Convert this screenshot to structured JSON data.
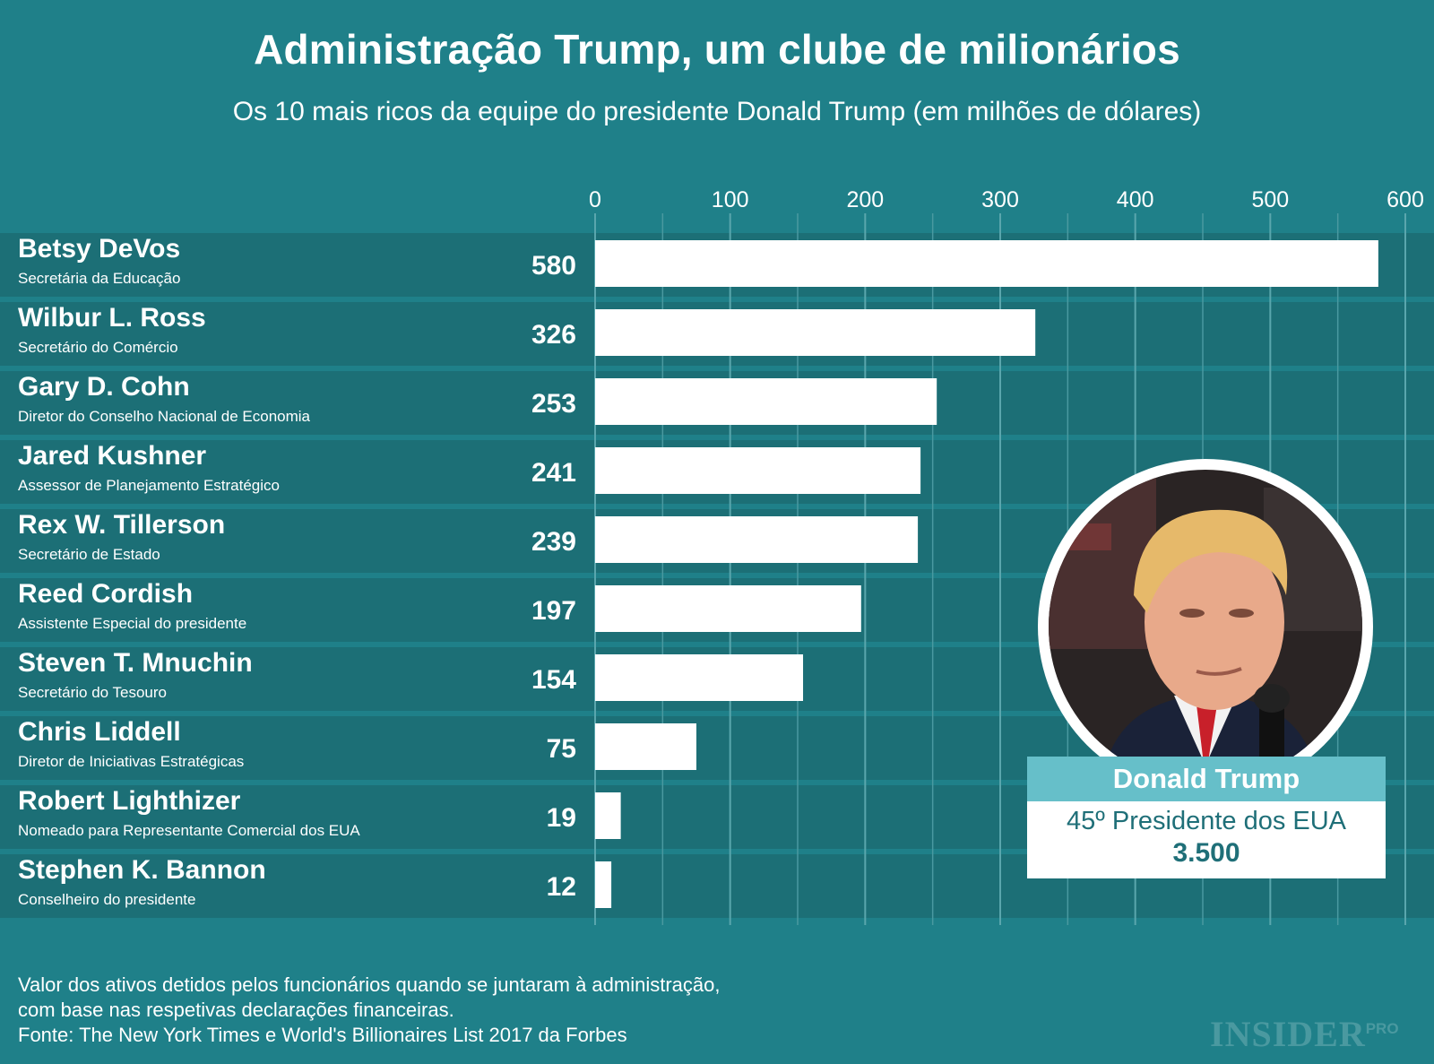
{
  "title": "Administração Trump, um clube de milionários",
  "subtitle": "Os 10 mais ricos da equipe do presidente Donald Trump (em milhões de dólares)",
  "chart_data": {
    "type": "bar",
    "orientation": "horizontal",
    "title": "Administração Trump, um clube de milionários",
    "subtitle": "Os 10 mais ricos da equipe do presidente Donald Trump (em milhões de dólares)",
    "xlim": [
      0,
      600
    ],
    "xticks": [
      0,
      100,
      200,
      300,
      400,
      500,
      600
    ],
    "grid": true,
    "categories": [
      "Betsy DeVos",
      "Wilbur L. Ross",
      "Gary D. Cohn",
      "Jared Kushner",
      "Rex W. Tillerson",
      "Reed Cordish",
      "Steven T. Mnuchin",
      "Chris Liddell",
      "Robert Lighthizer",
      "Stephen K. Bannon"
    ],
    "roles": [
      "Secretária da Educação",
      "Secretário do Comércio",
      "Diretor do Conselho Nacional de Economia",
      "Assessor de Planejamento Estratégico",
      "Secretário de Estado",
      "Assistente Especial do presidente",
      "Secretário do Tesouro",
      "Diretor de Iniciativas Estratégicas",
      "Nomeado para Representante Comercial dos EUA",
      "Conselheiro do presidente"
    ],
    "values": [
      580,
      326,
      253,
      241,
      239,
      197,
      154,
      75,
      19,
      12
    ]
  },
  "highlight": {
    "name": "Donald Trump",
    "role": "45º Presidente dos EUA",
    "value": "3.500",
    "photo": "portrait-photo"
  },
  "footnote": {
    "line1": "Valor dos ativos detidos pelos funcionários quando se juntaram à administração,",
    "line2": "com base nas respetivas declarações financeiras.",
    "line3": "Fonte: The New York Times e World's Billionaires List 2017 da Forbes"
  },
  "brand": {
    "main": "INSIDER",
    "sub": "PRO"
  },
  "colors": {
    "background": "#1f8089",
    "row_band": "#1c6f76",
    "bar": "#ffffff",
    "grid": "#4a99a0",
    "accent": "#66bfc9",
    "card_text": "#1f6f78"
  }
}
